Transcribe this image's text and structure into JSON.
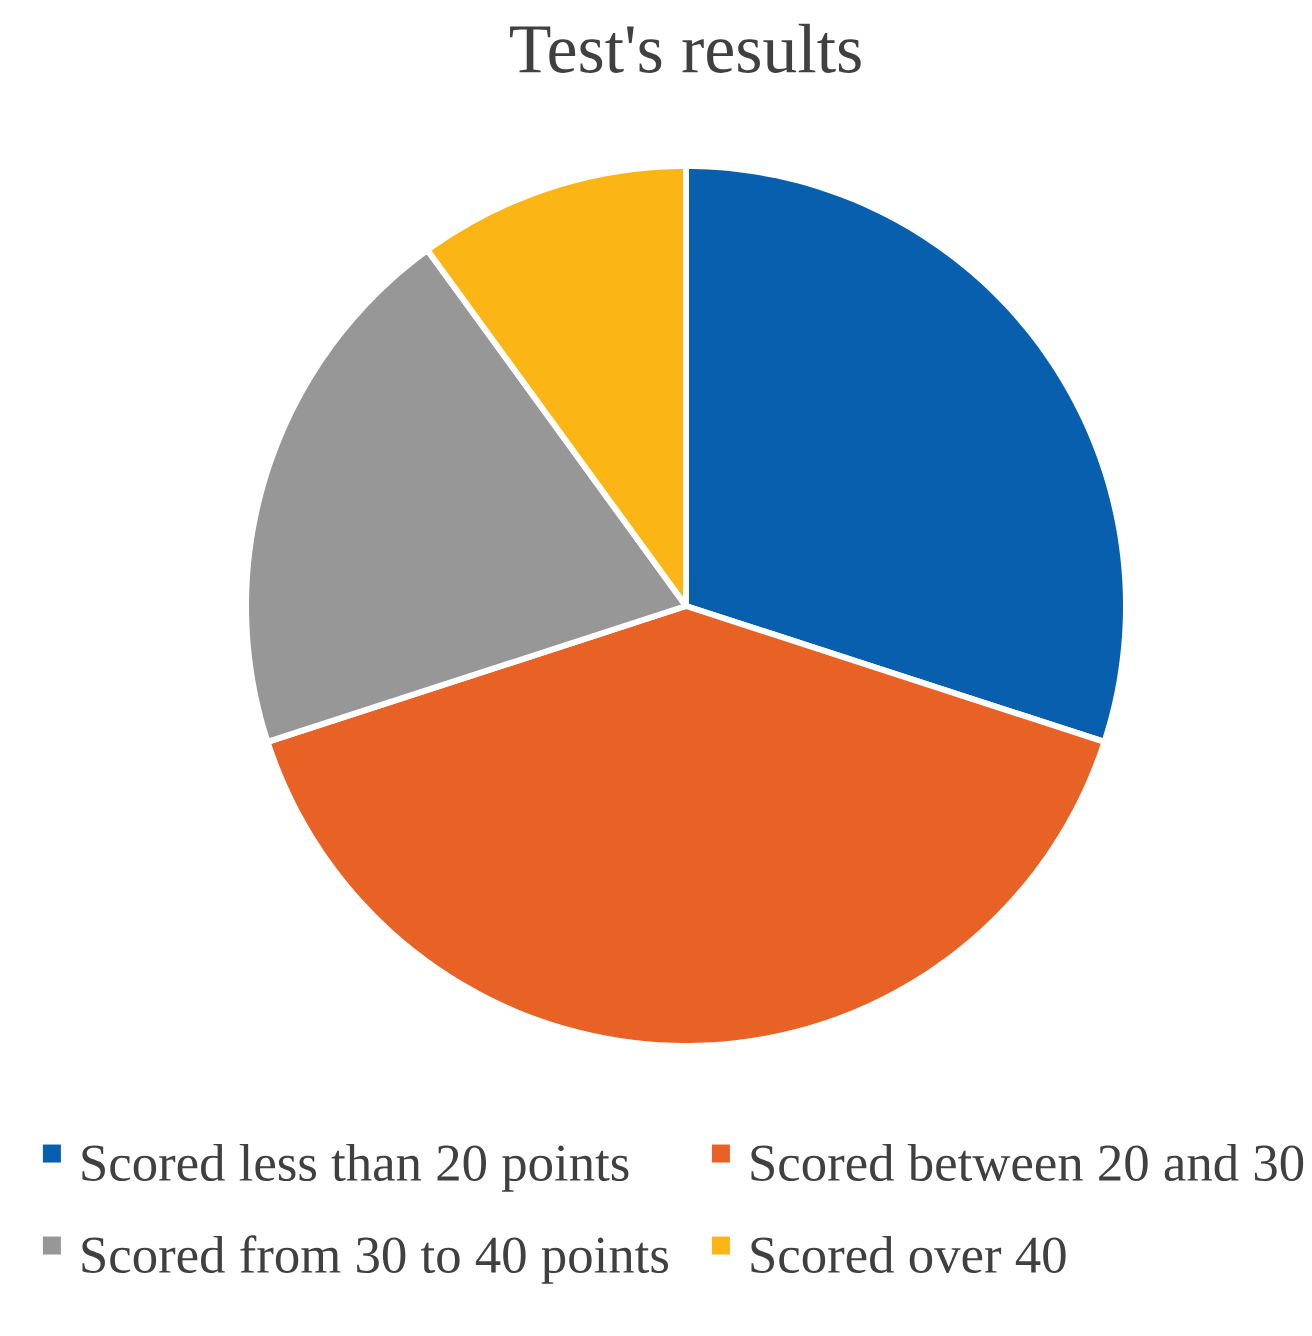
{
  "chart_data": {
    "type": "pie",
    "title": "Test's results",
    "categories": [
      "Scored less than 20 points",
      "Scored between 20 and 30",
      "Scored from 30 to 40 points",
      "Scored over 40"
    ],
    "values": [
      30,
      40,
      20,
      10
    ],
    "colors": [
      "#085fae",
      "#e86225",
      "#979797",
      "#fbb515"
    ],
    "legend": "bottom"
  }
}
